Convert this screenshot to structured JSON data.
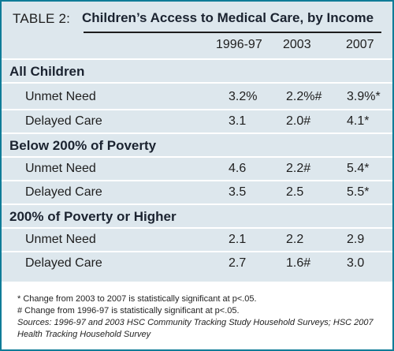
{
  "table": {
    "label": "TABLE 2:",
    "title": "Children’s Access to Medical Care, by Income",
    "columns": [
      "1996-97",
      "2003",
      "2007"
    ],
    "sections": [
      {
        "name": "All Children",
        "rows": [
          {
            "label": "Unmet Need",
            "values": [
              "3.2%",
              "2.2%#",
              "3.9%*"
            ]
          },
          {
            "label": "Delayed Care",
            "values": [
              "3.1",
              "2.0#",
              "4.1*"
            ]
          }
        ]
      },
      {
        "name": "Below 200% of Poverty",
        "rows": [
          {
            "label": "Unmet Need",
            "values": [
              "4.6",
              "2.2#",
              "5.4*"
            ]
          },
          {
            "label": "Delayed Care",
            "values": [
              "3.5",
              "2.5",
              "5.5*"
            ]
          }
        ]
      },
      {
        "name": "200% of Poverty or Higher",
        "rows": [
          {
            "label": "Unmet Need",
            "values": [
              "2.1",
              "2.2",
              "2.9"
            ]
          },
          {
            "label": "Delayed Care",
            "values": [
              "2.7",
              "1.6#",
              "3.0"
            ]
          }
        ]
      }
    ]
  },
  "notes": {
    "note1": "* Change from 2003 to 2007 is statistically significant at p<.05.",
    "note2": "# Change from 1996-97 is statistically significant at p<.05.",
    "sources": "Sources: 1996-97 and 2003 HSC Community Tracking Study Household Surveys; HSC 2007 Health Tracking Household Survey"
  },
  "colors": {
    "border": "#0f7c98",
    "panel": "#dde7ed"
  }
}
